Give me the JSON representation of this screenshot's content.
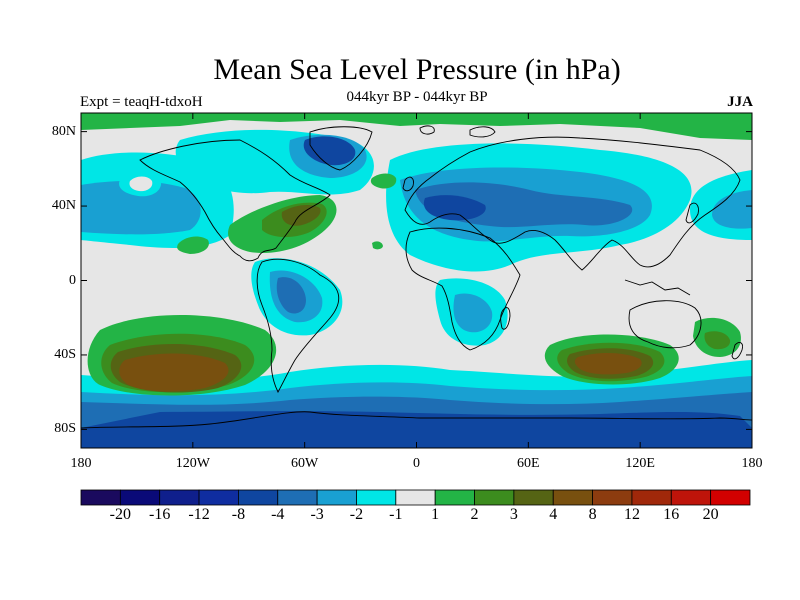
{
  "header": {
    "title": "Mean Sea Level Pressure (in hPa)",
    "subtitle": "044kyr BP - 044kyr BP",
    "experiment": "Expt = teaqH-tdxoH",
    "season": "JJA"
  },
  "axes": {
    "lat_labels": [
      "80N",
      "40N",
      "0",
      "40S",
      "80S"
    ],
    "lat_values": [
      80,
      40,
      0,
      -40,
      -80
    ],
    "lon_labels": [
      "180",
      "120W",
      "60W",
      "0",
      "60E",
      "120E",
      "180"
    ],
    "lon_values": [
      -180,
      -120,
      -60,
      0,
      60,
      120,
      180
    ]
  },
  "colorbar": {
    "colors": [
      "#1a0a5e",
      "#0a0a78",
      "#0f1f8c",
      "#0f2da0",
      "#0f46a0",
      "#1e6eb4",
      "#19a0d2",
      "#00e6e6",
      "#e6e6e6",
      "#23b446",
      "#3c8c1e",
      "#556414",
      "#78500f",
      "#8c3c0f",
      "#a0280a",
      "#be140a",
      "#d20000"
    ],
    "labels": [
      "-20",
      "-16",
      "-12",
      "-8",
      "-4",
      "-3",
      "-2",
      "-1",
      "1",
      "2",
      "3",
      "4",
      "8",
      "12",
      "16",
      "20"
    ]
  },
  "map_colors": {
    "background": "#e6e6e6",
    "light_blue": "#00e6e6",
    "mid_blue": "#19a0d2",
    "blue": "#1e6eb4",
    "dark_blue": "#0f46a0",
    "green": "#23b446",
    "dark_green": "#3c8c1e",
    "olive": "#556414",
    "brown": "#78500f",
    "coast": "#000000"
  }
}
